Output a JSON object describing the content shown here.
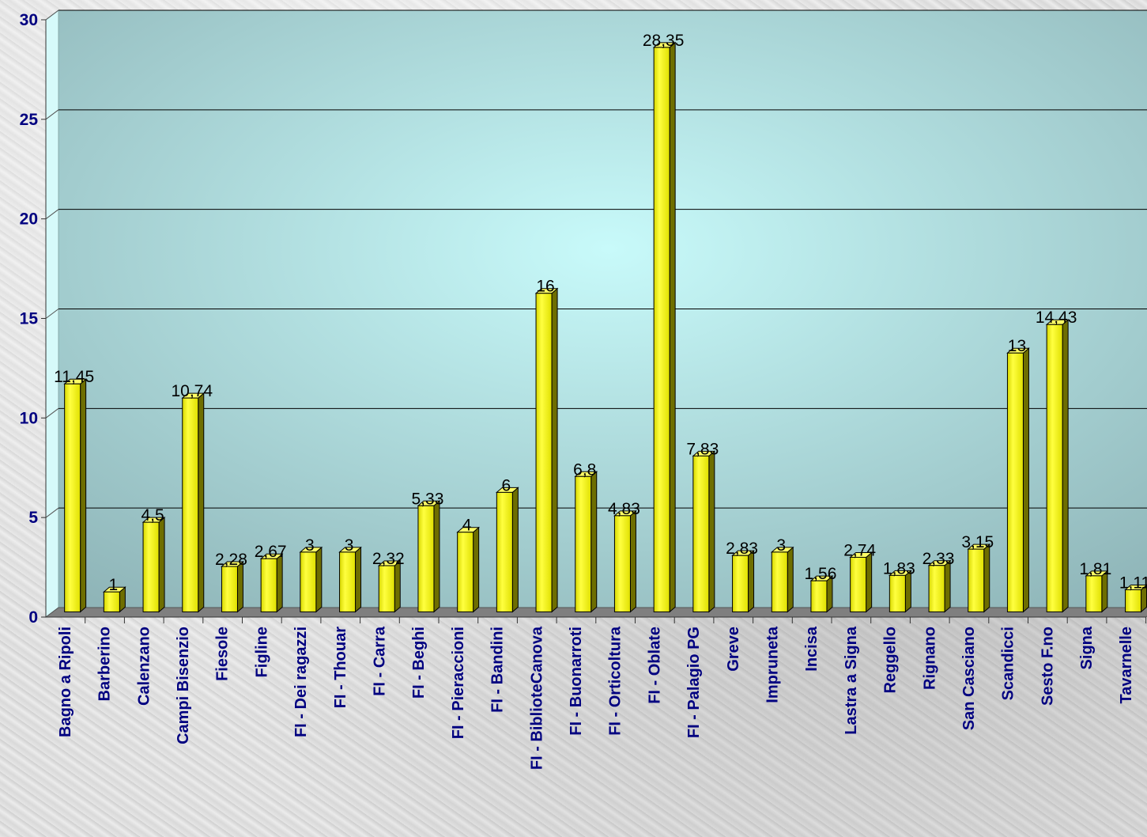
{
  "chart_data": {
    "type": "bar",
    "title": "",
    "xlabel": "",
    "ylabel": "",
    "ylim": [
      0,
      30
    ],
    "yticks": [
      0,
      5,
      10,
      15,
      20,
      25,
      30
    ],
    "grid": true,
    "legend": "none",
    "categories": [
      "Bagno a Ripoli",
      "Barberino",
      "Calenzano",
      "Campi Bisenzio",
      "Fiesole",
      "Figline",
      "FI - Dei ragazzi",
      "FI - Thouar",
      "FI - Carra",
      "FI - Beghi",
      "FI - Pieraccioni",
      "FI - Bandini",
      "FI - BiblioteCanova",
      "FI - Buonarroti",
      "FI - Orticoltura",
      "FI - Oblate",
      "FI - Palagio PG",
      "Greve",
      "Impruneta",
      "Incisa",
      "Lastra a Signa",
      "Reggello",
      "Rignano",
      "San Casciano",
      "Scandicci",
      "Sesto F.no",
      "Signa",
      "Tavarnelle"
    ],
    "values": [
      11.45,
      1,
      4.5,
      10.74,
      2.28,
      2.67,
      3,
      3,
      2.32,
      5.33,
      4,
      6,
      16,
      6.8,
      4.83,
      28.35,
      7.83,
      2.83,
      3,
      1.56,
      2.74,
      1.83,
      2.33,
      3.15,
      13,
      14.43,
      1.81,
      1.11
    ],
    "data_labels": [
      "11,45",
      "1",
      "4,5",
      "10,74",
      "2,28",
      "2,67",
      "3",
      "3",
      "2,32",
      "5,33",
      "4",
      "6",
      "16",
      "6,8",
      "4,83",
      "28,35",
      "7,83",
      "2,83",
      "3",
      "1,56",
      "2,74",
      "1,83",
      "2,33",
      "3,15",
      "13",
      "14,43",
      "1,81",
      "1,11"
    ],
    "colors": {
      "bar_front": "#f2f200",
      "bar_side": "#6e6e00",
      "bar_top": "#ffff66",
      "plot_center": "#c8fafa",
      "plot_edge": "#8fb5b8",
      "floor": "#7f7f7f",
      "axis_text": "#000080",
      "gridline": "#000000"
    }
  }
}
